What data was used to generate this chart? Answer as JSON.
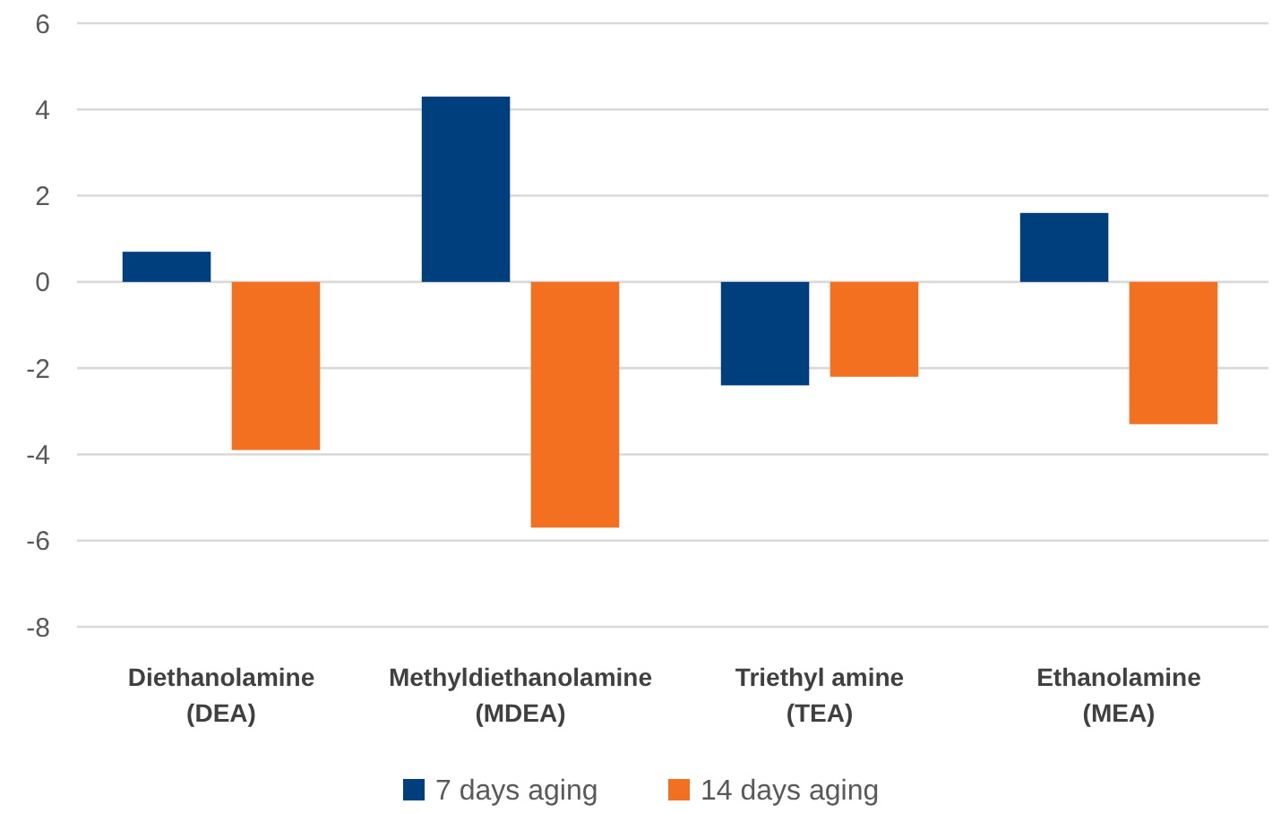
{
  "chart_data": {
    "type": "bar",
    "categories": [
      "Diethanolamine\n(DEA)",
      "Methyldiethanolamine\n(MDEA)",
      "Triethyl amine\n(TEA)",
      "Ethanolamine\n(MEA)"
    ],
    "series": [
      {
        "name": "7 days aging",
        "color": "#003f7d",
        "values": [
          0.7,
          4.3,
          -2.4,
          1.6
        ]
      },
      {
        "name": "14 days aging",
        "color": "#f37021",
        "values": [
          -3.9,
          -5.7,
          -2.2,
          -3.3
        ]
      }
    ],
    "ylim": [
      -8,
      6
    ],
    "yticks": [
      -8,
      -6,
      -4,
      -2,
      0,
      2,
      4,
      6
    ],
    "grid": "y",
    "legend": "bottom"
  }
}
